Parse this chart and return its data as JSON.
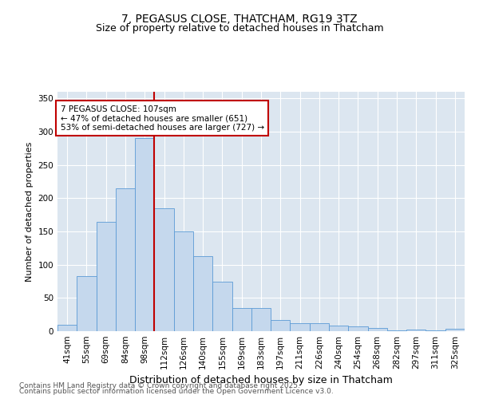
{
  "title_line1": "7, PEGASUS CLOSE, THATCHAM, RG19 3TZ",
  "title_line2": "Size of property relative to detached houses in Thatcham",
  "xlabel": "Distribution of detached houses by size in Thatcham",
  "ylabel": "Number of detached properties",
  "categories": [
    "41sqm",
    "55sqm",
    "69sqm",
    "84sqm",
    "98sqm",
    "112sqm",
    "126sqm",
    "140sqm",
    "155sqm",
    "169sqm",
    "183sqm",
    "197sqm",
    "211sqm",
    "226sqm",
    "240sqm",
    "254sqm",
    "268sqm",
    "282sqm",
    "297sqm",
    "311sqm",
    "325sqm"
  ],
  "values": [
    10,
    83,
    165,
    215,
    290,
    185,
    150,
    113,
    75,
    35,
    35,
    17,
    12,
    12,
    9,
    7,
    5,
    1,
    2,
    1,
    4
  ],
  "bar_color": "#c5d8ed",
  "bar_edge_color": "#5b9bd5",
  "vline_color": "#c00000",
  "vline_x_index": 5,
  "annotation_text": "7 PEGASUS CLOSE: 107sqm\n← 47% of detached houses are smaller (651)\n53% of semi-detached houses are larger (727) →",
  "annotation_box_facecolor": "#ffffff",
  "annotation_box_edgecolor": "#c00000",
  "ylim": [
    0,
    360
  ],
  "yticks": [
    0,
    50,
    100,
    150,
    200,
    250,
    300,
    350
  ],
  "plot_bg_color": "#dce6f0",
  "footer_line1": "Contains HM Land Registry data © Crown copyright and database right 2025.",
  "footer_line2": "Contains public sector information licensed under the Open Government Licence v3.0.",
  "title_fontsize": 10,
  "subtitle_fontsize": 9,
  "axis_label_fontsize": 9,
  "ylabel_fontsize": 8,
  "tick_fontsize": 7.5,
  "annotation_fontsize": 7.5,
  "footer_fontsize": 6.5
}
